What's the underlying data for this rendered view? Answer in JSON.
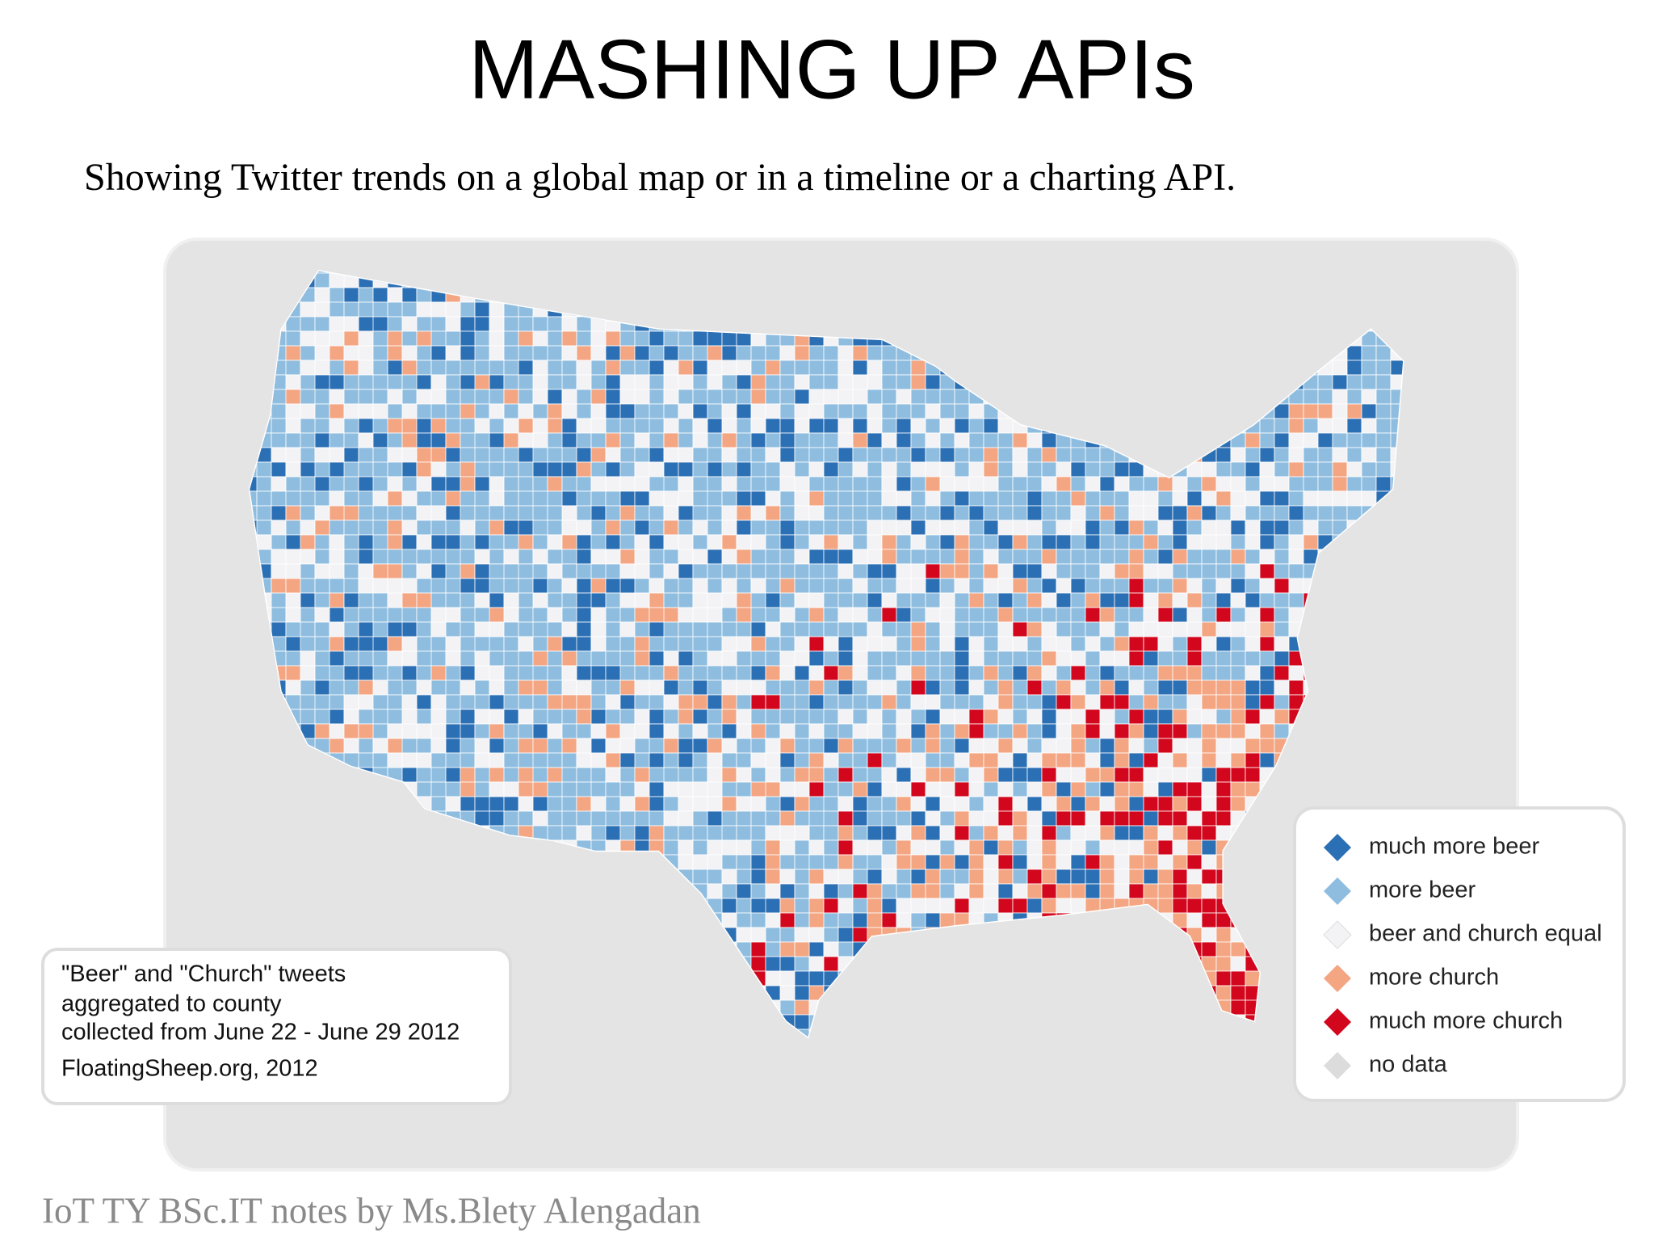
{
  "title": "MASHING UP APIs",
  "subtitle": "Showing Twitter trends on a global map or in a timeline or a charting API.",
  "map": {
    "info": [
      "\"Beer\" and \"Church\" tweets",
      "aggregated to county",
      "collected from June 22 - June 29 2012",
      "FloatingSheep.org, 2012"
    ],
    "legend": [
      {
        "label": "much more beer",
        "color": "#2b6fb4"
      },
      {
        "label": "more beer",
        "color": "#8fbde0"
      },
      {
        "label": "beer and church equal",
        "color": "#f3f3f6"
      },
      {
        "label": "more church",
        "color": "#f4a582"
      },
      {
        "label": "much more church",
        "color": "#d2061c"
      },
      {
        "label": "no data",
        "color": "#dcdcdc"
      }
    ]
  },
  "footer": "IoT TY BSc.IT notes by Ms.Blety Alengadan"
}
